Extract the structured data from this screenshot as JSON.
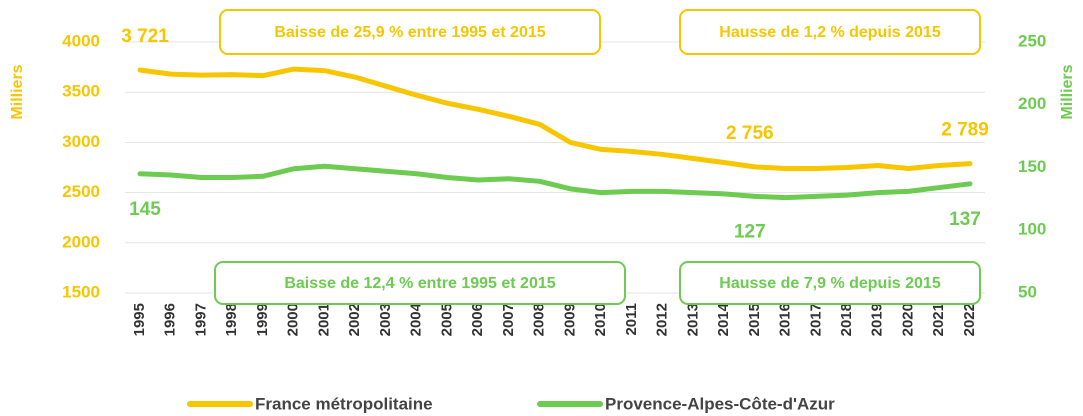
{
  "chart_data": {
    "type": "line",
    "x": [
      1995,
      1996,
      1997,
      1998,
      1999,
      2000,
      2001,
      2002,
      2003,
      2004,
      2005,
      2006,
      2007,
      2008,
      2009,
      2010,
      2011,
      2012,
      2013,
      2014,
      2015,
      2016,
      2017,
      2018,
      2019,
      2020,
      2021,
      2022
    ],
    "ylabel": "Milliers",
    "y2label": "Milliers",
    "ylim": [
      1500,
      4000
    ],
    "yticks": [
      1500,
      2000,
      2500,
      3000,
      3500,
      4000
    ],
    "y2lim": [
      50,
      250
    ],
    "y2ticks": [
      50,
      100,
      150,
      200,
      250
    ],
    "grid": true,
    "series": [
      {
        "name": "France métropolitaine",
        "color": "#f7c600",
        "values": [
          3721,
          3680,
          3670,
          3675,
          3665,
          3730,
          3715,
          3650,
          3560,
          3470,
          3390,
          3330,
          3260,
          3180,
          3000,
          2930,
          2910,
          2880,
          2840,
          2800,
          2756,
          2740,
          2740,
          2750,
          2770,
          2740,
          2770,
          2789
        ],
        "value_labels": [
          "3 721",
          null,
          null,
          null,
          null,
          null,
          null,
          null,
          null,
          null,
          null,
          null,
          null,
          null,
          null,
          null,
          null,
          null,
          null,
          null,
          "2 756",
          null,
          null,
          null,
          null,
          null,
          null,
          "2 789"
        ]
      },
      {
        "name": "Provence-Alpes-Côte-d'Azur",
        "color": "#6ccb50",
        "axis": "y2",
        "values": [
          145,
          144,
          142,
          142,
          143,
          149,
          151,
          149,
          147,
          145,
          142,
          140,
          141,
          139,
          133,
          130,
          131,
          131,
          130,
          129,
          127,
          126,
          127,
          128,
          130,
          131,
          134,
          137
        ],
        "value_labels": [
          "145",
          null,
          null,
          null,
          null,
          null,
          null,
          null,
          null,
          null,
          null,
          null,
          null,
          null,
          null,
          null,
          null,
          null,
          null,
          null,
          "127",
          null,
          null,
          null,
          null,
          null,
          null,
          "137"
        ]
      }
    ],
    "annotations": [
      {
        "text": "Baisse de 25,9 % entre 1995 et 2015",
        "color": "#f7c600"
      },
      {
        "text": "Hausse de 1,2 % depuis 2015",
        "color": "#f7c600"
      },
      {
        "text": "Baisse de 12,4 % entre 1995 et 2015",
        "color": "#6ccb50"
      },
      {
        "text": "Hausse de 7,9 % depuis 2015",
        "color": "#6ccb50"
      }
    ]
  }
}
